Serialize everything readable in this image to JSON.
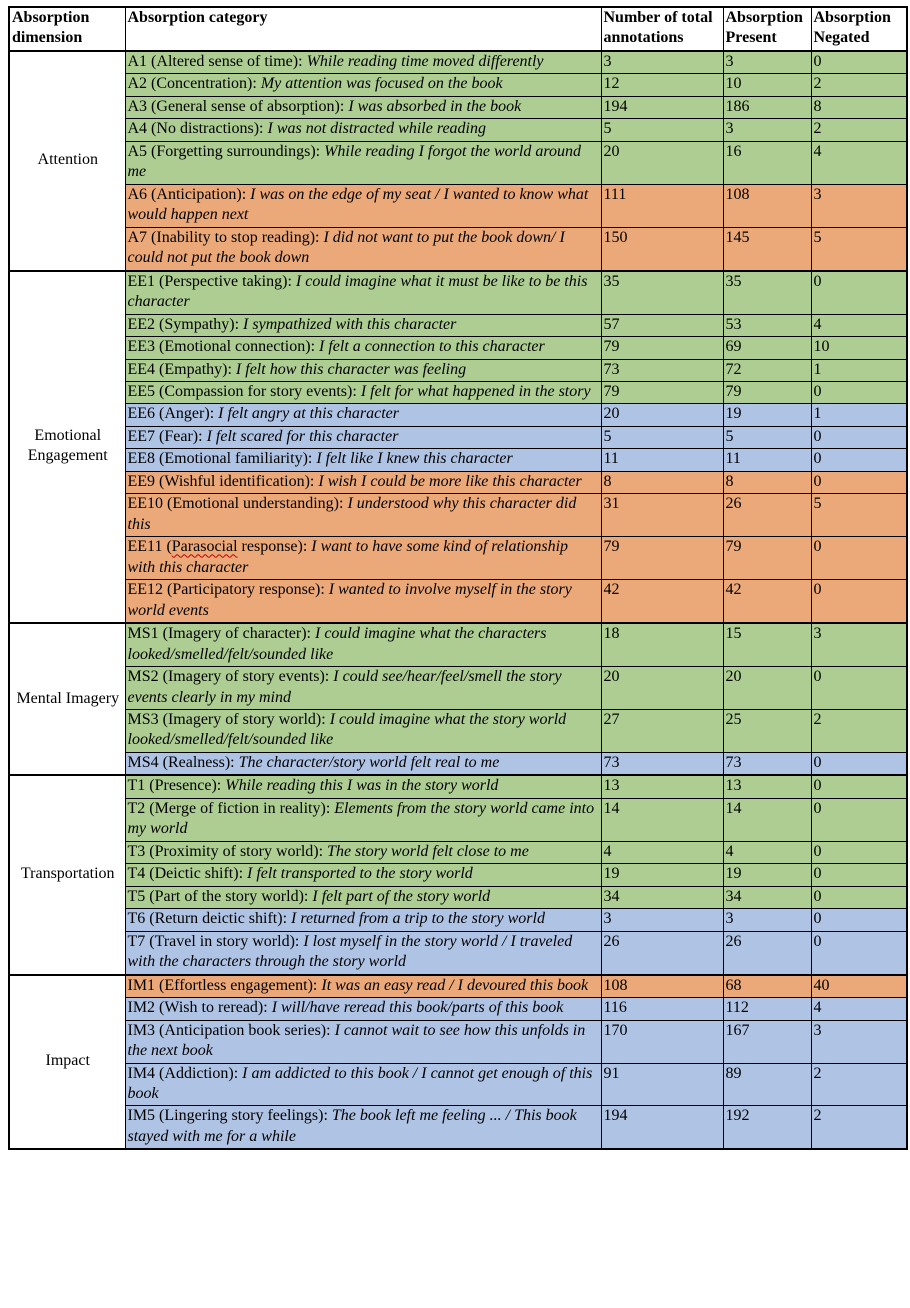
{
  "table": {
    "headers": [
      "Absorption dimension",
      "Absorption category",
      "Number of total annotations",
      "Absorption Present",
      "Absorption Negated"
    ],
    "colors": {
      "green": "#adcd92",
      "orange": "#eba878",
      "blue": "#afc3e4",
      "border": "#000000"
    },
    "sections": [
      {
        "dimension": "Attention",
        "rows": [
          {
            "code": "A1",
            "label": "A1 (Altered sense of time)",
            "quote": "While reading time moved differently",
            "total": "3",
            "present": "3",
            "negated": "0",
            "color": "green"
          },
          {
            "code": "A2",
            "label": "A2 (Concentration)",
            "quote": "My attention was focused on the book",
            "total": "12",
            "present": "10",
            "negated": "2",
            "color": "green"
          },
          {
            "code": "A3",
            "label": "A3 (General sense of absorption)",
            "quote": "I was absorbed in the book",
            "total": "194",
            "present": "186",
            "negated": "8",
            "color": "green"
          },
          {
            "code": "A4",
            "label": "A4 (No distractions)",
            "quote": "I was not distracted while reading",
            "total": "5",
            "present": "3",
            "negated": "2",
            "color": "green"
          },
          {
            "code": "A5",
            "label": "A5 (Forgetting surroundings)",
            "quote": "While reading I forgot the world around me",
            "total": "20",
            "present": "16",
            "negated": "4",
            "color": "green"
          },
          {
            "code": "A6",
            "label": "A6 (Anticipation)",
            "quote": "I was on the edge of my seat / I wanted to know what would happen next",
            "total": "111",
            "present": "108",
            "negated": "3",
            "color": "orange"
          },
          {
            "code": "A7",
            "label": "A7 (Inability to stop reading)",
            "quote": "I did not want to put the book down/ I could not put the book down",
            "total": "150",
            "present": "145",
            "negated": "5",
            "color": "orange"
          }
        ]
      },
      {
        "dimension": "Emotional Engagement",
        "rows": [
          {
            "code": "EE1",
            "label": "EE1 (Perspective taking)",
            "quote": "I could imagine what it must be like to be this character",
            "total": "35",
            "present": "35",
            "negated": "0",
            "color": "green"
          },
          {
            "code": "EE2",
            "label": "EE2 (Sympathy)",
            "quote": "I sympathized with this character",
            "total": "57",
            "present": "53",
            "negated": "4",
            "color": "green"
          },
          {
            "code": "EE3",
            "label": "EE3 (Emotional connection)",
            "quote": "I felt a connection to this character",
            "total": "79",
            "present": "69",
            "negated": "10",
            "color": "green"
          },
          {
            "code": "EE4",
            "label": "EE4 (Empathy)",
            "quote": "I felt how this character was feeling",
            "total": "73",
            "present": "72",
            "negated": "1",
            "color": "green"
          },
          {
            "code": "EE5",
            "label": "EE5 (Compassion for story events)",
            "quote": "I felt for what happened in the story",
            "total": "79",
            "present": "79",
            "negated": "0",
            "color": "green"
          },
          {
            "code": "EE6",
            "label": "EE6 (Anger)",
            "quote": "I felt angry at this character",
            "total": "20",
            "present": "19",
            "negated": "1",
            "color": "blue"
          },
          {
            "code": "EE7",
            "label": "EE7 (Fear)",
            "quote": "I felt scared for this character",
            "total": "5",
            "present": "5",
            "negated": "0",
            "color": "blue"
          },
          {
            "code": "EE8",
            "label": "EE8 (Emotional familiarity)",
            "quote": "I felt like I knew this character",
            "total": "11",
            "present": "11",
            "negated": "0",
            "color": "blue"
          },
          {
            "code": "EE9",
            "label": "EE9 (Wishful identification)",
            "quote": "I wish I could be more like this character",
            "total": "8",
            "present": "8",
            "negated": "0",
            "color": "orange"
          },
          {
            "code": "EE10",
            "label": "EE10 (Emotional understanding)",
            "quote": "I understood why this character did this",
            "total": "31",
            "present": "26",
            "negated": "5",
            "color": "orange"
          },
          {
            "code": "EE11",
            "label": "EE11 (Parasocial response)",
            "wavy_word": "Parasocial",
            "quote": "I want to have some kind of relationship with this character",
            "total": "79",
            "present": "79",
            "negated": "0",
            "color": "orange"
          },
          {
            "code": "EE12",
            "label": "EE12 (Participatory response)",
            "quote": "I wanted to involve myself in the story world events",
            "total": "42",
            "present": "42",
            "negated": "0",
            "color": "orange"
          }
        ]
      },
      {
        "dimension": "Mental Imagery",
        "rows": [
          {
            "code": "MS1",
            "label": "MS1 (Imagery of character)",
            "quote": "I could imagine what the characters looked/smelled/felt/sounded like",
            "total": "18",
            "present": "15",
            "negated": "3",
            "color": "green"
          },
          {
            "code": "MS2",
            "label": "MS2 (Imagery of story events)",
            "quote": "I could see/hear/feel/smell the story events clearly in my mind",
            "total": "20",
            "present": "20",
            "negated": "0",
            "color": "green"
          },
          {
            "code": "MS3",
            "label": "MS3 (Imagery of story world)",
            "quote": "I could imagine what the story world looked/smelled/felt/sounded like",
            "total": "27",
            "present": "25",
            "negated": "2",
            "color": "green"
          },
          {
            "code": "MS4",
            "label": "MS4 (Realness)",
            "quote": "The character/story world felt real to me",
            "total": "73",
            "present": "73",
            "negated": "0",
            "color": "blue"
          }
        ]
      },
      {
        "dimension": "Transportation",
        "rows": [
          {
            "code": "T1",
            "label": "T1 (Presence)",
            "quote": "While reading this I was in the story world",
            "total": "13",
            "present": "13",
            "negated": "0",
            "color": "green"
          },
          {
            "code": "T2",
            "label": "T2 (Merge of fiction in reality)",
            "quote": "Elements from the story world came into my world",
            "total": "14",
            "present": "14",
            "negated": "0",
            "color": "green"
          },
          {
            "code": "T3",
            "label": "T3 (Proximity of story world)",
            "quote": "The story world felt close to me",
            "total": "4",
            "present": "4",
            "negated": "0",
            "color": "green"
          },
          {
            "code": "T4",
            "label": "T4 (Deictic shift)",
            "quote": "I felt transported to the story world",
            "total": "19",
            "present": "19",
            "negated": "0",
            "color": "green"
          },
          {
            "code": "T5",
            "label": "T5 (Part of the story world)",
            "quote": "I felt part of the story world",
            "total": "34",
            "present": "34",
            "negated": "0",
            "color": "green"
          },
          {
            "code": "T6",
            "label": "T6 (Return deictic shift)",
            "quote": "I returned from a trip to the story world",
            "total": "3",
            "present": "3",
            "negated": "0",
            "color": "blue"
          },
          {
            "code": "T7",
            "label": "T7 (Travel in story world)",
            "quote": "I lost myself in the story world / I traveled with the characters through the story world",
            "total": "26",
            "present": "26",
            "negated": "0",
            "color": "blue"
          }
        ]
      },
      {
        "dimension": "Impact",
        "rows": [
          {
            "code": "IM1",
            "label": "IM1 (Effortless engagement)",
            "quote": "It was an easy read / I devoured this book",
            "total": "108",
            "present": "68",
            "negated": "40",
            "color": "orange"
          },
          {
            "code": "IM2",
            "label": "IM2 (Wish to reread)",
            "quote": "I will/have reread this book/parts of this book",
            "total": "116",
            "present": "112",
            "negated": "4",
            "color": "blue"
          },
          {
            "code": "IM3",
            "label": "IM3 (Anticipation book series)",
            "quote": "I cannot wait to see how this unfolds in the next book",
            "total": "170",
            "present": "167",
            "negated": "3",
            "color": "blue"
          },
          {
            "code": "IM4",
            "label": "IM4 (Addiction)",
            "quote": "I am addicted to this book / I cannot get enough of this book",
            "total": "91",
            "present": "89",
            "negated": "2",
            "color": "blue"
          },
          {
            "code": "IM5",
            "label": "IM5 (Lingering story feelings)",
            "quote": "The book left me feeling ... / This book stayed with me for a while",
            "total": "194",
            "present": "192",
            "negated": "2",
            "color": "blue"
          }
        ]
      }
    ]
  }
}
